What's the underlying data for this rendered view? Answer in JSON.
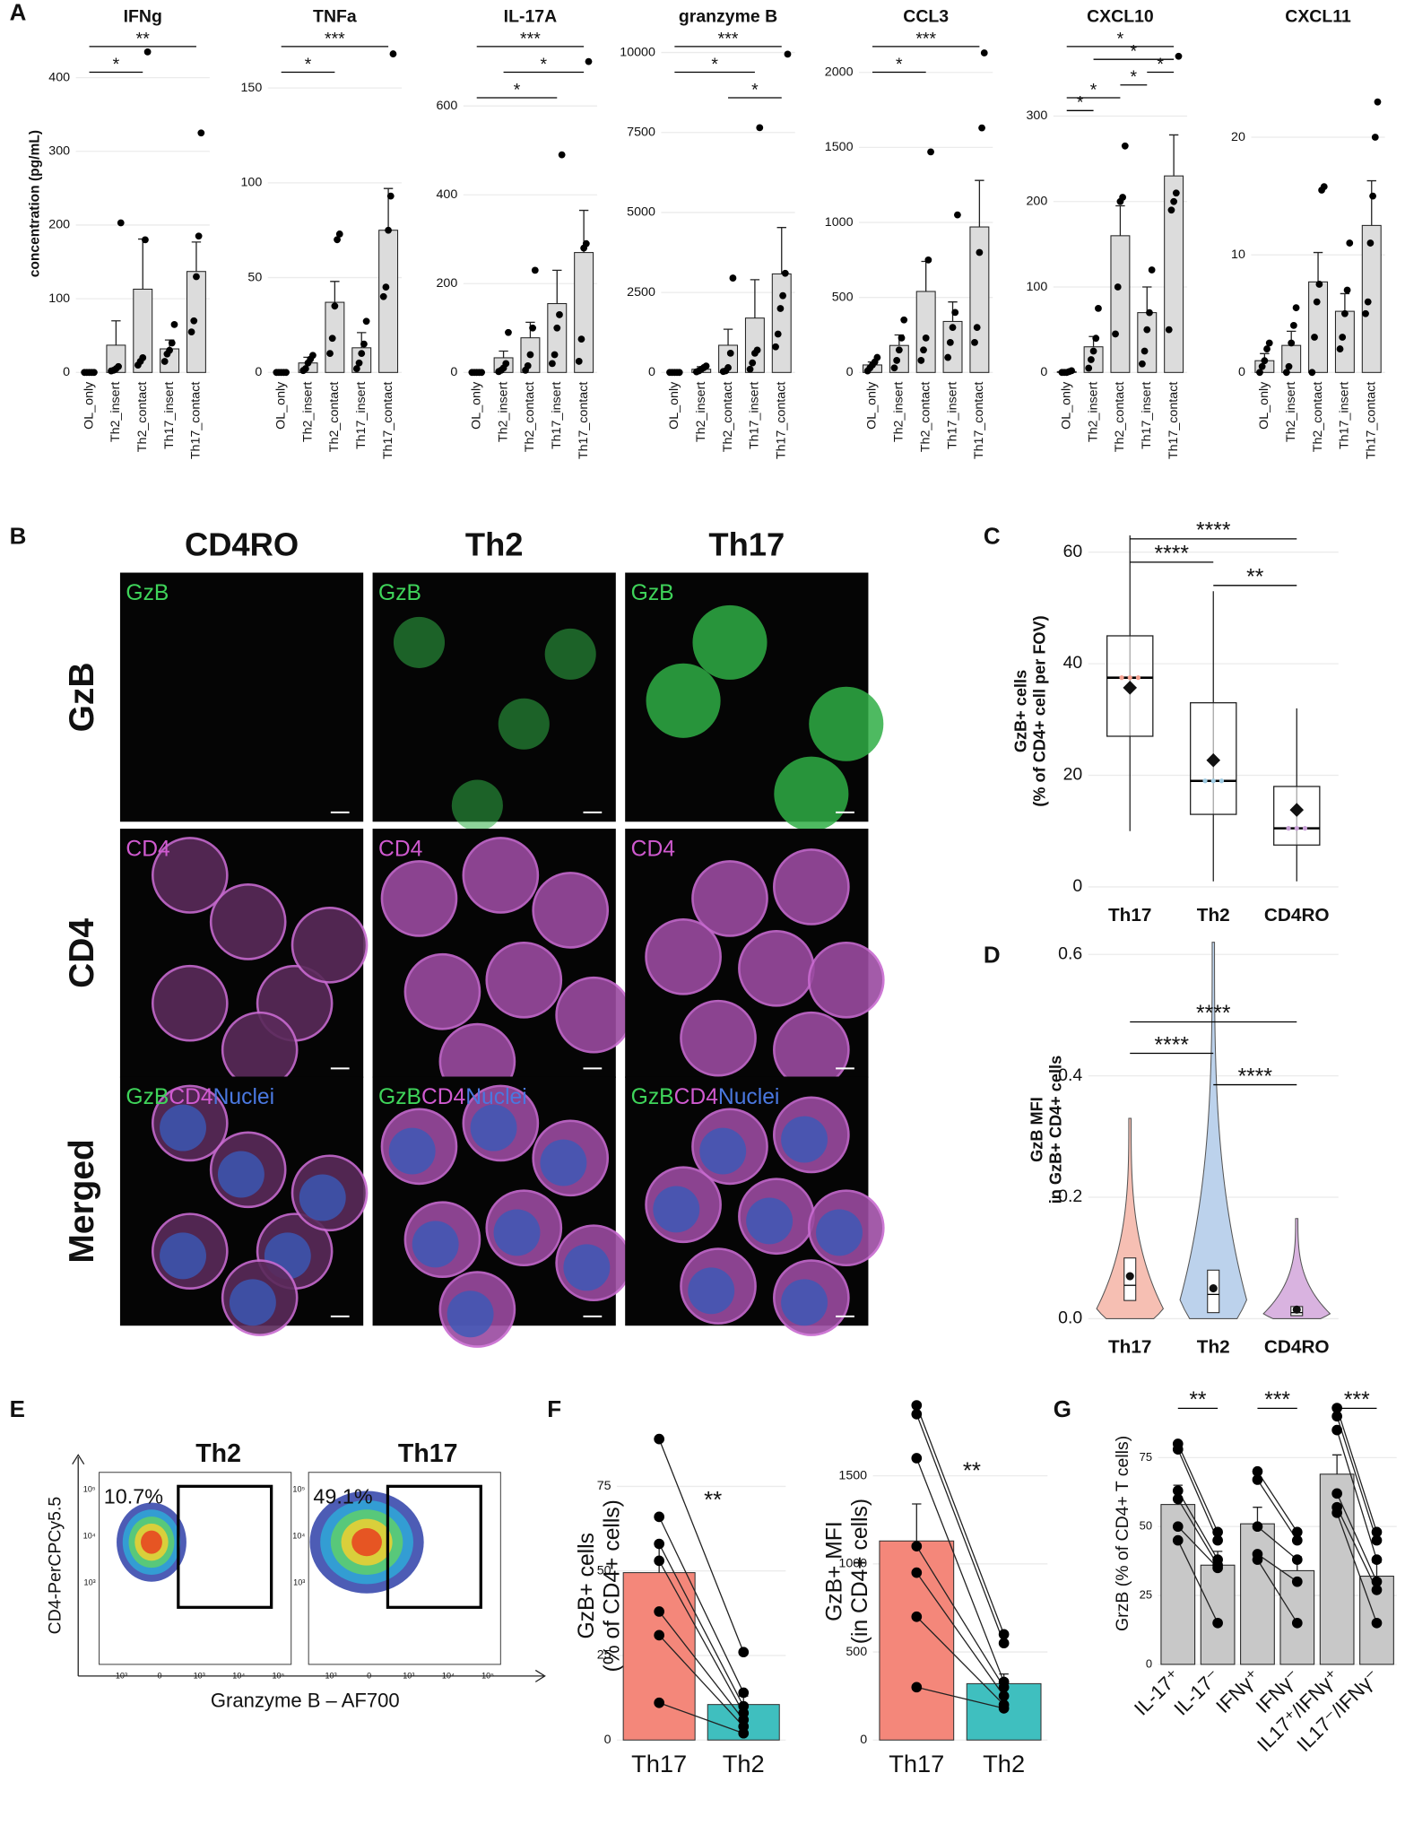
{
  "panel_labels": [
    "A",
    "B",
    "C",
    "D",
    "E",
    "F",
    "G"
  ],
  "micrographs": {
    "columns": [
      "CD4RO",
      "Th2",
      "Th17"
    ],
    "rows": [
      "GzB",
      "CD4",
      "Merged"
    ],
    "channels": [
      "GzB",
      "CD4",
      "Nuclei"
    ]
  },
  "flow": {
    "plots": [
      {
        "title": "Th2",
        "gate": "10.7%"
      },
      {
        "title": "Th17",
        "gate": "49.1%"
      }
    ],
    "xlabel": "Granzyme B – AF700",
    "ylabel": "CD4-PerCPCy5.5",
    "xticks": [
      "-10³",
      "0",
      "10³",
      "10⁴",
      "10⁵"
    ],
    "yticks": [
      "10⁵",
      "10⁴",
      "10³"
    ]
  },
  "chart_data": [
    {
      "type": "bar",
      "title": "IFNg",
      "ylabel": [
        "concentration (pg/mL)"
      ],
      "categories": [
        "OL_only",
        "Th2_insert",
        "Th2_contact",
        "Th17_insert",
        "Th17_contact"
      ],
      "values": [
        0,
        37,
        113,
        32,
        137
      ],
      "errors": [
        1,
        33,
        68,
        12,
        40
      ],
      "points": [
        [
          0,
          0,
          0,
          0,
          0
        ],
        [
          2,
          3,
          5,
          8,
          203
        ],
        [
          10,
          15,
          20,
          180,
          435
        ],
        [
          15,
          25,
          30,
          40,
          65
        ],
        [
          55,
          70,
          130,
          185,
          325
        ]
      ],
      "color": "#dcdcdc",
      "ylim": [
        0,
        458
      ],
      "yticks": [
        0,
        100,
        200,
        300,
        400
      ],
      "grid": true,
      "comparisons": [
        {
          "text": "**",
          "groups": [
            "OL_only",
            "Th17_contact"
          ]
        },
        {
          "text": "*",
          "groups": [
            "OL_only",
            "Th2_contact"
          ]
        }
      ]
    },
    {
      "type": "bar",
      "title": "TNFa",
      "categories": [
        "OL_only",
        "Th2_insert",
        "Th2_contact",
        "Th17_insert",
        "Th17_contact"
      ],
      "values": [
        0,
        5,
        37,
        13,
        75
      ],
      "errors": [
        0.5,
        3,
        11,
        8,
        22
      ],
      "points": [
        [
          0,
          0,
          0,
          0,
          0
        ],
        [
          1,
          2,
          5,
          7,
          9
        ],
        [
          10,
          18,
          35,
          70,
          73
        ],
        [
          2,
          5,
          10,
          15,
          27
        ],
        [
          40,
          45,
          75,
          93,
          168
        ]
      ],
      "color": "#dcdcdc",
      "ylim": [
        0,
        178
      ],
      "yticks": [
        0,
        50,
        100,
        150
      ],
      "grid": true,
      "comparisons": [
        {
          "text": "***",
          "groups": [
            "OL_only",
            "Th17_contact"
          ]
        },
        {
          "text": "*",
          "groups": [
            "OL_only",
            "Th2_contact"
          ]
        }
      ]
    },
    {
      "type": "bar",
      "title": "IL-17A",
      "categories": [
        "OL_only",
        "Th2_insert",
        "Th2_contact",
        "Th17_insert",
        "Th17_contact"
      ],
      "values": [
        0,
        33,
        78,
        155,
        270
      ],
      "errors": [
        2,
        15,
        35,
        75,
        95
      ],
      "points": [
        [
          0,
          0,
          0,
          0,
          0
        ],
        [
          2,
          5,
          10,
          20,
          90
        ],
        [
          5,
          15,
          40,
          100,
          230
        ],
        [
          20,
          40,
          100,
          130,
          490
        ],
        [
          25,
          75,
          280,
          290,
          700
        ]
      ],
      "color": "#dcdcdc",
      "ylim": [
        0,
        760
      ],
      "yticks": [
        0,
        200,
        400,
        600
      ],
      "grid": true,
      "comparisons": [
        {
          "text": "***",
          "groups": [
            "OL_only",
            "Th17_contact"
          ]
        },
        {
          "text": "*",
          "groups": [
            "Th2_insert",
            "Th17_contact"
          ]
        },
        {
          "text": "*",
          "groups": [
            "OL_only",
            "Th17_insert"
          ]
        }
      ]
    },
    {
      "type": "bar",
      "title": "granzyme B",
      "categories": [
        "OL_only",
        "Th2_insert",
        "Th2_contact",
        "Th17_insert",
        "Th17_contact"
      ],
      "values": [
        0,
        100,
        850,
        1700,
        3080
      ],
      "errors": [
        20,
        80,
        500,
        1200,
        1450
      ],
      "points": [
        [
          0,
          0,
          0,
          0,
          0
        ],
        [
          20,
          50,
          100,
          150,
          200
        ],
        [
          30,
          50,
          150,
          600,
          2950
        ],
        [
          100,
          300,
          600,
          700,
          7650
        ],
        [
          800,
          1200,
          2000,
          2400,
          3100,
          9950
        ]
      ],
      "color": "#dcdcdc",
      "ylim": [
        0,
        10550
      ],
      "yticks": [
        0,
        2500,
        5000,
        7500,
        10000
      ],
      "grid": true,
      "comparisons": [
        {
          "text": "***",
          "groups": [
            "OL_only",
            "Th17_contact"
          ]
        },
        {
          "text": "*",
          "groups": [
            "OL_only",
            "Th17_insert"
          ]
        },
        {
          "text": "*",
          "groups": [
            "Th2_contact",
            "Th17_contact"
          ]
        }
      ]
    },
    {
      "type": "bar",
      "title": "CCL3",
      "categories": [
        "OL_only",
        "Th2_insert",
        "Th2_contact",
        "Th17_insert",
        "Th17_contact"
      ],
      "values": [
        50,
        180,
        540,
        340,
        970
      ],
      "errors": [
        20,
        70,
        200,
        130,
        310
      ],
      "points": [
        [
          10,
          30,
          50,
          70,
          100
        ],
        [
          30,
          80,
          150,
          230,
          350
        ],
        [
          80,
          150,
          230,
          750,
          1470
        ],
        [
          100,
          200,
          300,
          400,
          1050
        ],
        [
          200,
          300,
          800,
          1630,
          2130
        ]
      ],
      "color": "#dcdcdc",
      "ylim": [
        0,
        2250
      ],
      "yticks": [
        0,
        500,
        1000,
        1500,
        2000
      ],
      "grid": true,
      "comparisons": [
        {
          "text": "***",
          "groups": [
            "OL_only",
            "Th17_contact"
          ]
        },
        {
          "text": "*",
          "groups": [
            "OL_only",
            "Th2_contact"
          ]
        }
      ]
    },
    {
      "type": "bar",
      "title": "CXCL10",
      "categories": [
        "OL_only",
        "Th2_insert",
        "Th2_contact",
        "Th17_insert",
        "Th17_contact"
      ],
      "values": [
        1,
        30,
        160,
        70,
        230
      ],
      "errors": [
        0.5,
        12,
        35,
        30,
        48
      ],
      "points": [
        [
          0,
          0,
          0,
          1,
          2
        ],
        [
          5,
          15,
          25,
          40,
          75
        ],
        [
          45,
          100,
          200,
          205,
          265
        ],
        [
          10,
          25,
          50,
          70,
          120
        ],
        [
          50,
          190,
          200,
          210,
          370
        ]
      ],
      "color": "#dcdcdc",
      "ylim": [
        0,
        395
      ],
      "yticks": [
        0,
        100,
        200,
        300
      ],
      "grid": true,
      "comparisons": [
        {
          "text": "*",
          "groups": [
            "OL_only",
            "Th17_contact"
          ]
        },
        {
          "text": "*",
          "groups": [
            "Th2_insert",
            "Th17_contact"
          ]
        },
        {
          "text": "*",
          "groups": [
            "Th17_insert",
            "Th17_contact"
          ]
        },
        {
          "text": "*",
          "groups": [
            "Th2_contact",
            "Th17_insert"
          ]
        },
        {
          "text": "*",
          "groups": [
            "OL_only",
            "Th2_contact"
          ]
        },
        {
          "text": "*",
          "groups": [
            "OL_only",
            "Th2_insert"
          ]
        }
      ]
    },
    {
      "type": "bar",
      "title": "CXCL11",
      "categories": [
        "OL_only",
        "Th2_insert",
        "Th2_contact",
        "Th17_insert",
        "Th17_contact"
      ],
      "values": [
        1,
        2.3,
        7.7,
        5.2,
        12.5
      ],
      "errors": [
        0.6,
        1.2,
        2.5,
        1.5,
        3.8
      ],
      "points": [
        [
          0,
          0.5,
          1,
          2,
          2.5
        ],
        [
          0,
          0.5,
          2.5,
          4,
          5.5
        ],
        [
          0,
          3,
          6,
          7.5,
          15.5,
          15.8
        ],
        [
          2,
          3,
          5,
          7,
          11
        ],
        [
          5,
          6,
          11,
          15,
          20,
          23
        ]
      ],
      "color": "#dcdcdc",
      "ylim": [
        0,
        28.7
      ],
      "yticks": [
        0,
        10,
        20
      ],
      "grid": true,
      "comparisons": []
    },
    {
      "type": "box",
      "ylabel": [
        "GzB+ cells",
        "(% of CD4+ cell per FOV)"
      ],
      "categories": [
        "Th17",
        "Th2",
        "CD4RO"
      ],
      "min": [
        10,
        1,
        1
      ],
      "q1": [
        27,
        13,
        7.5
      ],
      "median": [
        37.5,
        19,
        10.5
      ],
      "q3": [
        45,
        33,
        18
      ],
      "max": [
        63,
        53,
        32
      ],
      "mean": [
        35.7,
        22.7,
        13.8
      ],
      "colors": [
        "#f4a08f",
        "#9ecae1",
        "#c79fd6"
      ],
      "ylim": [
        0,
        63
      ],
      "yticks": [
        0,
        20,
        40,
        60
      ],
      "grid": true,
      "comparisons": [
        {
          "text": "****",
          "groups": [
            "Th17",
            "CD4RO"
          ]
        },
        {
          "text": "****",
          "groups": [
            "Th17",
            "Th2"
          ]
        },
        {
          "text": "**",
          "groups": [
            "Th2",
            "CD4RO"
          ]
        }
      ]
    },
    {
      "type": "violin",
      "ylabel": [
        "GzB MFI",
        "in GzB+ CD4+ cells"
      ],
      "categories": [
        "Th17",
        "Th2",
        "CD4RO"
      ],
      "max": [
        0.33,
        0.62,
        0.165
      ],
      "q1": [
        0.03,
        0.01,
        0.005
      ],
      "median": [
        0.055,
        0.04,
        0.01
      ],
      "q3": [
        0.1,
        0.08,
        0.02
      ],
      "mean": [
        0.07,
        0.05,
        0.015
      ],
      "colors": [
        "#f6bfb3",
        "#bcd2ec",
        "#d9b3e0"
      ],
      "ylim": [
        0,
        0.623
      ],
      "yticks": [
        {
          "value": 0,
          "label": "0.0"
        },
        0.2,
        0.4,
        0.6
      ],
      "grid": true,
      "comparisons": [
        {
          "text": "****",
          "groups": [
            "Th17",
            "CD4RO"
          ]
        },
        {
          "text": "****",
          "groups": [
            "Th17",
            "Th2"
          ]
        },
        {
          "text": "****",
          "groups": [
            "Th2",
            "CD4RO"
          ]
        }
      ]
    },
    {
      "type": "bar",
      "ylabel": [
        "GzB+ cells",
        "(% of CD4+ cells)"
      ],
      "categories": [
        "Th17",
        "Th2"
      ],
      "values": [
        49.5,
        10.5
      ],
      "errors": [
        8.5,
        2.5
      ],
      "points": [
        [
          89,
          66,
          58,
          53,
          38,
          31,
          11
        ],
        [
          26,
          14,
          10,
          8,
          6,
          4,
          2
        ]
      ],
      "paired": true,
      "colors": [
        "#f4877a",
        "#3fbfbf"
      ],
      "ylim": [
        0,
        91.2
      ],
      "yticks": [
        0,
        25,
        50,
        75
      ],
      "grid": true,
      "annotation": "**",
      "comparisons": []
    },
    {
      "type": "bar",
      "ylabel": [
        "GzB+ MFI",
        "(in CD4+ cells)"
      ],
      "categories": [
        "Th17",
        "Th2"
      ],
      "values": [
        1130,
        320
      ],
      "errors": [
        210,
        55
      ],
      "points": [
        [
          1900,
          1850,
          1600,
          1100,
          950,
          700,
          300
        ],
        [
          600,
          550,
          330,
          300,
          250,
          200,
          180
        ]
      ],
      "paired": true,
      "colors": [
        "#f4877a",
        "#3fbfbf"
      ],
      "ylim": [
        0,
        1916
      ],
      "yticks": [
        0,
        500,
        1000,
        1500
      ],
      "grid": true,
      "annotation": "**",
      "comparisons": []
    },
    {
      "type": "bar",
      "ylabel": [
        "GrzB (% of CD4+ T cells)"
      ],
      "categories": [
        "IL-17⁺",
        "IL-17⁻",
        "IFNγ⁺",
        "IFNγ⁻",
        "IL17⁺/IFNγ⁺",
        "IL17⁻/IFNγ⁻"
      ],
      "values": [
        58,
        36,
        51,
        34,
        69,
        32
      ],
      "errors": [
        7,
        5,
        6,
        5,
        7,
        5
      ],
      "points": [
        [
          80,
          78,
          63,
          60,
          50,
          45
        ],
        [
          48,
          45,
          38,
          36,
          35,
          15
        ],
        [
          70,
          67,
          50,
          40,
          38
        ],
        [
          48,
          45,
          38,
          30,
          15
        ],
        [
          93,
          90,
          85,
          62,
          57,
          55
        ],
        [
          48,
          45,
          38,
          30,
          27,
          15
        ]
      ],
      "paired": true,
      "color": "#c8c8c8",
      "ylim": [
        0,
        95
      ],
      "yticks": [
        0,
        25,
        50,
        75
      ],
      "grid": true,
      "comparisons": [
        {
          "text": "**",
          "groups": [
            "IL-17⁺",
            "IL-17⁻"
          ]
        },
        {
          "text": "***",
          "groups": [
            "IFNγ⁺",
            "IFNγ⁻"
          ]
        },
        {
          "text": "***",
          "groups": [
            "IL17⁺/IFNγ⁺",
            "IL17⁻/IFNγ⁻"
          ]
        }
      ]
    }
  ]
}
